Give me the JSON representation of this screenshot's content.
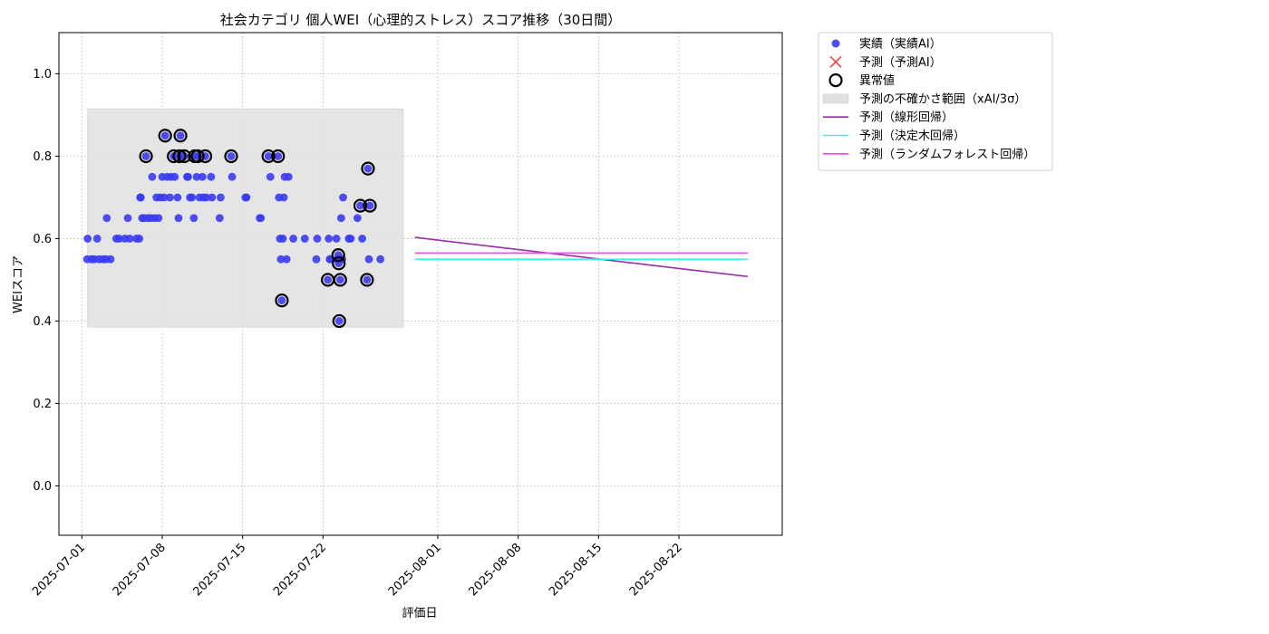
{
  "chart_data": {
    "type": "scatter",
    "title": "社会カテゴリ 個人WEI（心理的ストレス）スコア推移（30日間）",
    "xlabel": "評価日",
    "ylabel": "WEIスコア",
    "xlim": [
      "2025-06-29",
      "2025-08-31"
    ],
    "ylim": [
      -0.12,
      1.1
    ],
    "yticks": [
      0.0,
      0.2,
      0.4,
      0.6,
      0.8,
      1.0
    ],
    "ytick_labels": [
      "0.0",
      "0.2",
      "0.4",
      "0.6",
      "0.8",
      "1.0"
    ],
    "xticks": [
      "2025-07-01",
      "2025-07-08",
      "2025-07-15",
      "2025-07-22",
      "2025-08-01",
      "2025-08-08",
      "2025-08-15",
      "2025-08-22"
    ],
    "grid": true,
    "legend_position": "outside right",
    "legend": [
      {
        "label": "実績（実績AI）",
        "kind": "dot",
        "color": "#3b3bf0"
      },
      {
        "label": "予測（予測AI）",
        "kind": "x",
        "color": "#ff4040"
      },
      {
        "label": "異常値",
        "kind": "ring",
        "color": "#000000"
      },
      {
        "label": "予測の不確かさ範囲（xAI/3σ）",
        "kind": "band",
        "color": "#e0e0e0"
      },
      {
        "label": "予測（線形回帰）",
        "kind": "line",
        "color": "#9b2fa5"
      },
      {
        "label": "予測（決定木回帰）",
        "kind": "line",
        "color": "#3ff0f0"
      },
      {
        "label": "予測（ランダムフォレスト回帰）",
        "kind": "line",
        "color": "#ff3cff"
      }
    ],
    "uncertainty_band": {
      "x_start": "2025-07-01 12:00",
      "x_end": "2025-07-29",
      "y_low": 0.385,
      "y_high": 0.915
    },
    "series": [
      {
        "name": "実績（実績AI）",
        "color": "#3b3bf0",
        "points": [
          [
            "2025-07-01 11:00",
            0.55
          ],
          [
            "2025-07-01 12:00",
            0.6
          ],
          [
            "2025-07-01 20:00",
            0.55
          ],
          [
            "2025-07-02 02:00",
            0.55
          ],
          [
            "2025-07-02 08:00",
            0.6
          ],
          [
            "2025-07-02 12:00",
            0.55
          ],
          [
            "2025-07-02 20:00",
            0.55
          ],
          [
            "2025-07-03 03:00",
            0.55
          ],
          [
            "2025-07-03 04:00",
            0.65
          ],
          [
            "2025-07-03 12:00",
            0.55
          ],
          [
            "2025-07-04 00:00",
            0.6
          ],
          [
            "2025-07-04 06:00",
            0.6
          ],
          [
            "2025-07-04 18:00",
            0.6
          ],
          [
            "2025-07-05 00:00",
            0.65
          ],
          [
            "2025-07-05 04:00",
            0.6
          ],
          [
            "2025-07-05 18:00",
            0.6
          ],
          [
            "2025-07-06 00:00",
            0.6
          ],
          [
            "2025-07-06 02:00",
            0.7
          ],
          [
            "2025-07-06 03:00",
            0.7
          ],
          [
            "2025-07-06 06:00",
            0.65
          ],
          [
            "2025-07-06 10:00",
            0.65
          ],
          [
            "2025-07-06 14:00",
            0.8
          ],
          [
            "2025-07-06 18:00",
            0.65
          ],
          [
            "2025-07-07 00:00",
            0.65
          ],
          [
            "2025-07-07 03:00",
            0.75
          ],
          [
            "2025-07-07 08:00",
            0.65
          ],
          [
            "2025-07-07 12:00",
            0.7
          ],
          [
            "2025-07-07 16:00",
            0.65
          ],
          [
            "2025-07-07 20:00",
            0.7
          ],
          [
            "2025-07-08 00:00",
            0.75
          ],
          [
            "2025-07-08 04:00",
            0.7
          ],
          [
            "2025-07-08 06:00",
            0.85
          ],
          [
            "2025-07-08 10:00",
            0.75
          ],
          [
            "2025-07-08 16:00",
            0.7
          ],
          [
            "2025-07-08 18:00",
            0.75
          ],
          [
            "2025-07-09 00:00",
            0.8
          ],
          [
            "2025-07-09 02:00",
            0.75
          ],
          [
            "2025-07-09 08:00",
            0.7
          ],
          [
            "2025-07-09 10:00",
            0.65
          ],
          [
            "2025-07-09 12:00",
            0.8
          ],
          [
            "2025-07-09 14:00",
            0.85
          ],
          [
            "2025-07-09 18:00",
            0.8
          ],
          [
            "2025-07-09 22:00",
            0.8
          ],
          [
            "2025-07-10 04:00",
            0.75
          ],
          [
            "2025-07-10 06:00",
            0.75
          ],
          [
            "2025-07-10 10:00",
            0.7
          ],
          [
            "2025-07-10 14:00",
            0.7
          ],
          [
            "2025-07-10 18:00",
            0.65
          ],
          [
            "2025-07-10 20:00",
            0.8
          ],
          [
            "2025-07-11 00:00",
            0.75
          ],
          [
            "2025-07-11 02:00",
            0.8
          ],
          [
            "2025-07-11 06:00",
            0.7
          ],
          [
            "2025-07-11 12:00",
            0.75
          ],
          [
            "2025-07-11 14:00",
            0.7
          ],
          [
            "2025-07-11 18:00",
            0.8
          ],
          [
            "2025-07-11 20:00",
            0.7
          ],
          [
            "2025-07-12 06:00",
            0.75
          ],
          [
            "2025-07-12 08:00",
            0.7
          ],
          [
            "2025-07-13 00:00",
            0.65
          ],
          [
            "2025-07-13 02:00",
            0.7
          ],
          [
            "2025-07-14 00:00",
            0.8
          ],
          [
            "2025-07-14 02:00",
            0.75
          ],
          [
            "2025-07-15 06:00",
            0.7
          ],
          [
            "2025-07-15 08:00",
            0.7
          ],
          [
            "2025-07-16 12:00",
            0.65
          ],
          [
            "2025-07-16 14:00",
            0.65
          ],
          [
            "2025-07-17 06:00",
            0.8
          ],
          [
            "2025-07-17 10:00",
            0.75
          ],
          [
            "2025-07-18 02:00",
            0.8
          ],
          [
            "2025-07-18 04:00",
            0.7
          ],
          [
            "2025-07-18 06:00",
            0.6
          ],
          [
            "2025-07-18 08:00",
            0.55
          ],
          [
            "2025-07-18 10:00",
            0.45
          ],
          [
            "2025-07-18 12:00",
            0.6
          ],
          [
            "2025-07-18 14:00",
            0.7
          ],
          [
            "2025-07-18 16:00",
            0.75
          ],
          [
            "2025-07-18 20:00",
            0.55
          ],
          [
            "2025-07-19 00:00",
            0.75
          ],
          [
            "2025-07-19 10:00",
            0.6
          ],
          [
            "2025-07-20 10:00",
            0.6
          ],
          [
            "2025-07-21 10:00",
            0.55
          ],
          [
            "2025-07-21 12:00",
            0.6
          ],
          [
            "2025-07-22 10:00",
            0.5
          ],
          [
            "2025-07-22 12:00",
            0.6
          ],
          [
            "2025-07-22 14:00",
            0.55
          ],
          [
            "2025-07-22 16:00",
            0.55
          ],
          [
            "2025-07-23 04:00",
            0.6
          ],
          [
            "2025-07-23 06:00",
            0.55
          ],
          [
            "2025-07-23 08:00",
            0.56
          ],
          [
            "2025-07-23 09:00",
            0.54
          ],
          [
            "2025-07-23 10:00",
            0.4
          ],
          [
            "2025-07-23 12:00",
            0.5
          ],
          [
            "2025-07-23 14:00",
            0.65
          ],
          [
            "2025-07-23 16:00",
            0.55
          ],
          [
            "2025-07-23 18:00",
            0.7
          ],
          [
            "2025-07-24 06:00",
            0.6
          ],
          [
            "2025-07-24 10:00",
            0.6
          ],
          [
            "2025-07-25 00:00",
            0.65
          ],
          [
            "2025-07-25 06:00",
            0.68
          ],
          [
            "2025-07-25 10:00",
            0.6
          ],
          [
            "2025-07-25 20:00",
            0.5
          ],
          [
            "2025-07-25 22:00",
            0.77
          ],
          [
            "2025-07-26 00:00",
            0.55
          ],
          [
            "2025-07-26 02:00",
            0.68
          ],
          [
            "2025-07-27 00:00",
            0.55
          ]
        ]
      },
      {
        "name": "異常値",
        "color": "#000000",
        "points": [
          [
            "2025-07-06 14:00",
            0.8
          ],
          [
            "2025-07-08 06:00",
            0.85
          ],
          [
            "2025-07-09 00:00",
            0.8
          ],
          [
            "2025-07-09 14:00",
            0.85
          ],
          [
            "2025-07-09 12:00",
            0.8
          ],
          [
            "2025-07-09 22:00",
            0.8
          ],
          [
            "2025-07-10 20:00",
            0.8
          ],
          [
            "2025-07-11 02:00",
            0.8
          ],
          [
            "2025-07-11 18:00",
            0.8
          ],
          [
            "2025-07-14 00:00",
            0.8
          ],
          [
            "2025-07-17 06:00",
            0.8
          ],
          [
            "2025-07-18 02:00",
            0.8
          ],
          [
            "2025-07-18 10:00",
            0.45
          ],
          [
            "2025-07-22 10:00",
            0.5
          ],
          [
            "2025-07-23 08:00",
            0.56
          ],
          [
            "2025-07-23 09:00",
            0.54
          ],
          [
            "2025-07-23 10:00",
            0.4
          ],
          [
            "2025-07-23 12:00",
            0.5
          ],
          [
            "2025-07-25 06:00",
            0.68
          ],
          [
            "2025-07-25 20:00",
            0.5
          ],
          [
            "2025-07-25 22:00",
            0.77
          ],
          [
            "2025-07-26 02:00",
            0.68
          ]
        ]
      },
      {
        "name": "予測（線形回帰）",
        "color": "#9b2fa5",
        "points": [
          [
            "2025-07-30",
            0.603
          ],
          [
            "2025-08-28",
            0.508
          ]
        ]
      },
      {
        "name": "予測（決定木回帰）",
        "color": "#3ff0f0",
        "points": [
          [
            "2025-07-30",
            0.55
          ],
          [
            "2025-08-28",
            0.55
          ]
        ]
      },
      {
        "name": "予測（ランダムフォレスト回帰）",
        "color": "#ff3cff",
        "points": [
          [
            "2025-07-30",
            0.565
          ],
          [
            "2025-08-28",
            0.565
          ]
        ]
      }
    ]
  }
}
